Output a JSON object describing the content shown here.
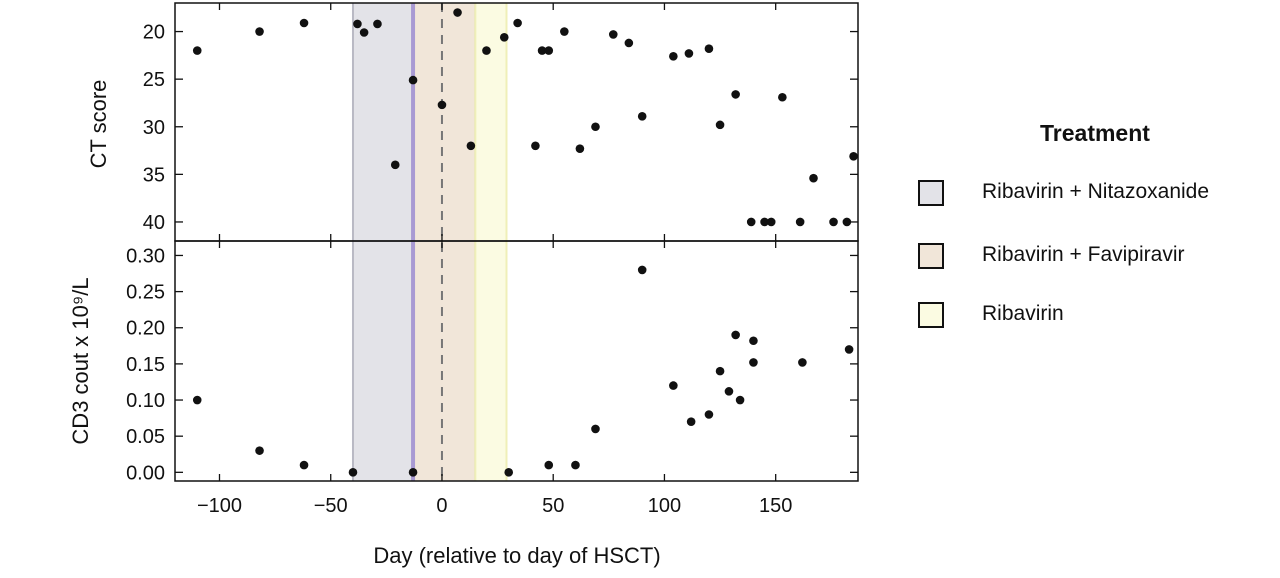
{
  "chart_data": [
    {
      "type": "scatter",
      "panel": "top",
      "ylabel": "CT score",
      "y_reversed": true,
      "ylim": [
        17,
        42
      ],
      "yticks": [
        20,
        25,
        30,
        35,
        40
      ],
      "xlim": [
        -120,
        187
      ],
      "points": [
        {
          "x": -110,
          "y": 22
        },
        {
          "x": -82,
          "y": 20
        },
        {
          "x": -62,
          "y": 19.1
        },
        {
          "x": -38,
          "y": 19.2
        },
        {
          "x": -35,
          "y": 20.1
        },
        {
          "x": -29,
          "y": 19.2
        },
        {
          "x": -13,
          "y": 25.1
        },
        {
          "x": -21,
          "y": 34
        },
        {
          "x": 0,
          "y": 27.7
        },
        {
          "x": 7,
          "y": 18
        },
        {
          "x": 13,
          "y": 32
        },
        {
          "x": 20,
          "y": 22
        },
        {
          "x": 28,
          "y": 20.6
        },
        {
          "x": 34,
          "y": 19.1
        },
        {
          "x": 42,
          "y": 32
        },
        {
          "x": 45,
          "y": 22
        },
        {
          "x": 48,
          "y": 22
        },
        {
          "x": 55,
          "y": 20
        },
        {
          "x": 62,
          "y": 32.3
        },
        {
          "x": 69,
          "y": 30
        },
        {
          "x": 77,
          "y": 20.3
        },
        {
          "x": 84,
          "y": 21.2
        },
        {
          "x": 90,
          "y": 28.9
        },
        {
          "x": 104,
          "y": 22.6
        },
        {
          "x": 111,
          "y": 22.3
        },
        {
          "x": 120,
          "y": 21.8
        },
        {
          "x": 125,
          "y": 29.8
        },
        {
          "x": 132,
          "y": 26.6
        },
        {
          "x": 139,
          "y": 40
        },
        {
          "x": 145,
          "y": 40
        },
        {
          "x": 148,
          "y": 40
        },
        {
          "x": 153,
          "y": 26.9
        },
        {
          "x": 161,
          "y": 40
        },
        {
          "x": 167,
          "y": 35.4
        },
        {
          "x": 176,
          "y": 40
        },
        {
          "x": 182,
          "y": 40
        },
        {
          "x": 185,
          "y": 33.1
        }
      ]
    },
    {
      "type": "scatter",
      "panel": "bottom",
      "ylabel": "CD3 cout x 10⁹/L",
      "ylim": [
        -0.012,
        0.32
      ],
      "yticks": [
        0.0,
        0.05,
        0.1,
        0.15,
        0.2,
        0.25,
        0.3
      ],
      "xlim": [
        -120,
        187
      ],
      "points": [
        {
          "x": -110,
          "y": 0.1
        },
        {
          "x": -82,
          "y": 0.03
        },
        {
          "x": -62,
          "y": 0.01
        },
        {
          "x": -40,
          "y": 0.0
        },
        {
          "x": -13,
          "y": 0.0
        },
        {
          "x": 30,
          "y": 0.0
        },
        {
          "x": 48,
          "y": 0.01
        },
        {
          "x": 60,
          "y": 0.01
        },
        {
          "x": 69,
          "y": 0.06
        },
        {
          "x": 90,
          "y": 0.28
        },
        {
          "x": 104,
          "y": 0.12
        },
        {
          "x": 112,
          "y": 0.07
        },
        {
          "x": 120,
          "y": 0.08
        },
        {
          "x": 125,
          "y": 0.14
        },
        {
          "x": 129,
          "y": 0.112
        },
        {
          "x": 132,
          "y": 0.19
        },
        {
          "x": 134,
          "y": 0.1
        },
        {
          "x": 140,
          "y": 0.182
        },
        {
          "x": 140,
          "y": 0.152
        },
        {
          "x": 162,
          "y": 0.152
        },
        {
          "x": 183,
          "y": 0.17
        }
      ]
    }
  ],
  "shared": {
    "xlabel": "Day (relative to day of HSCT)",
    "xticks": [
      -100,
      -50,
      0,
      50,
      100,
      150
    ],
    "vline_dashed_x": 0,
    "treatment_bands": [
      {
        "name": "Ribavirin + Nitazoxanide",
        "x0": -40,
        "x1": -13,
        "fill": "#e3e3e8",
        "edge": "#b9b9c4"
      },
      {
        "name": "Ribavirin + Favipiravir",
        "x0": -13,
        "x1": 15,
        "fill": "#f1e6d9",
        "edge": "#d7c7b4"
      },
      {
        "name": "Ribavirin",
        "x0": 15,
        "x1": 29,
        "fill": "#fbfbe2",
        "edge": "#efefb8"
      }
    ],
    "purple_line_x": -13,
    "purple_line_color": "#a99ad3"
  },
  "legend": {
    "title": "Treatment",
    "items": [
      {
        "label": "Ribavirin + Nitazoxanide",
        "color": "#e3e3e8"
      },
      {
        "label": "Ribavirin + Favipiravir",
        "color": "#f1e6d9"
      },
      {
        "label": "Ribavirin",
        "color": "#fbfbe2"
      }
    ]
  }
}
